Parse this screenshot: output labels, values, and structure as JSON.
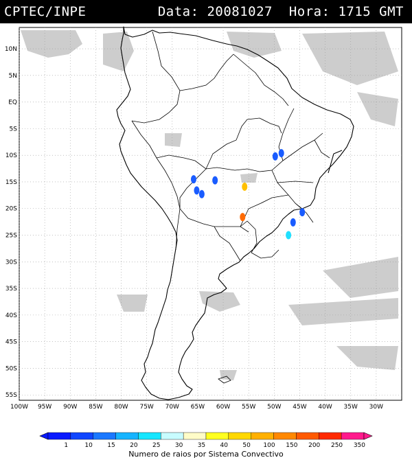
{
  "header": {
    "source": "CPTEC/INPE",
    "datetime": "Data: 20081027  Hora: 1715 GMT"
  },
  "map": {
    "lon_range": [
      -100,
      -25
    ],
    "lat_range": [
      -56,
      14
    ],
    "lat_labels": [
      "10N",
      "5N",
      "EQ",
      "5S",
      "10S",
      "15S",
      "20S",
      "25S",
      "30S",
      "35S",
      "40S",
      "45S",
      "50S",
      "55S"
    ],
    "lon_labels": [
      "100W",
      "95W",
      "90W",
      "85W",
      "80W",
      "75W",
      "70W",
      "65W",
      "60W",
      "55W",
      "50W",
      "45W",
      "40W",
      "35W",
      "30W"
    ],
    "colors": {
      "land_line": "#000000",
      "cloud": "#c8c8c8",
      "grid": "#9a9a9a"
    }
  },
  "storms": [
    {
      "lon": -65.2,
      "lat": -16.6,
      "color": "#1a5cff"
    },
    {
      "lon": -64.2,
      "lat": -17.3,
      "color": "#1a5cff"
    },
    {
      "lon": -65.8,
      "lat": -14.5,
      "color": "#1a5cff"
    },
    {
      "lon": -61.6,
      "lat": -14.7,
      "color": "#1a5cff"
    },
    {
      "lon": -55.8,
      "lat": -15.9,
      "color": "#ffc000"
    },
    {
      "lon": -56.2,
      "lat": -21.6,
      "color": "#ff6a00"
    },
    {
      "lon": -48.6,
      "lat": -9.6,
      "color": "#1a5cff"
    },
    {
      "lon": -49.8,
      "lat": -10.2,
      "color": "#1a5cff"
    },
    {
      "lon": -46.3,
      "lat": -22.6,
      "color": "#1a5cff"
    },
    {
      "lon": -47.2,
      "lat": -25.0,
      "color": "#20e0ff"
    },
    {
      "lon": -44.5,
      "lat": -20.7,
      "color": "#1a5cff"
    }
  ],
  "legend": {
    "labels": [
      "1",
      "10",
      "15",
      "20",
      "25",
      "30",
      "35",
      "40",
      "50",
      "100",
      "150",
      "200",
      "250",
      "350"
    ],
    "colors": [
      "#0a1aff",
      "#0f46ff",
      "#1a78ff",
      "#16b4ff",
      "#16e6ff",
      "#c8fcff",
      "#fffcc8",
      "#ffff20",
      "#ffd800",
      "#ffb000",
      "#ff8800",
      "#ff5a00",
      "#ff2a00",
      "#ff1a8c"
    ],
    "caption": "Numero de raios por Sistema Convectivo"
  }
}
